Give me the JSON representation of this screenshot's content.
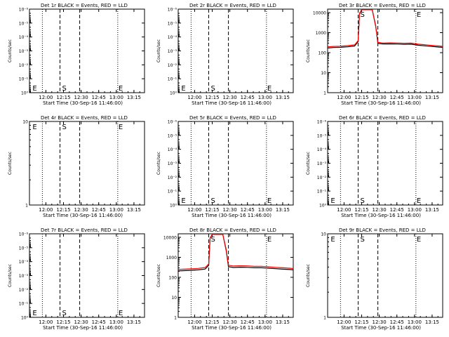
{
  "colors": {
    "events": "#000000",
    "lld": "#ff0000",
    "axes": "#000000"
  },
  "chart_data": [
    {
      "type": "line",
      "title": "Det 1r  BLACK = Events, RED = LLD",
      "ylabel": "Counts/sec",
      "xlabel": "Start Time (30-Sep-16 11:46:00)",
      "yscale": "log",
      "ytick_labels": [
        "10⁰",
        "10⁻¹",
        "10⁻²",
        "10⁻³",
        "10⁻⁴",
        "10⁻⁵",
        "10⁻⁶"
      ],
      "ytick_values": [
        1,
        0.1,
        0.01,
        0.001,
        0.0001,
        1e-05,
        1e-06
      ],
      "ylim": [
        1,
        1e-06
      ],
      "xtick_labels": [
        "12:00",
        "12:15",
        "12:30",
        "12:45",
        "13:00",
        "13:15"
      ],
      "xtick_values": [
        12.0,
        12.25,
        12.5,
        12.75,
        13.0,
        13.25
      ],
      "xlim": [
        11.767,
        13.4
      ],
      "vlines_dotted": [
        11.95,
        13.02
      ],
      "vlines_dashed": [
        12.2,
        12.48
      ],
      "markers": [
        {
          "label": "E",
          "x": 11.8
        },
        {
          "label": "S",
          "x": 12.22
        },
        {
          "label": "E",
          "x": 13.02
        }
      ],
      "series": []
    },
    {
      "type": "line",
      "title": "Det 2r  BLACK = Events, RED = LLD",
      "ylabel": "Counts/sec",
      "xlabel": "Start Time (30-Sep-16 11:46:00)",
      "yscale": "log",
      "ytick_labels": [
        "10⁰",
        "10⁻¹",
        "10⁻²",
        "10⁻³",
        "10⁻⁴",
        "10⁻⁵",
        "10⁻⁶"
      ],
      "ytick_values": [
        1,
        0.1,
        0.01,
        0.001,
        0.0001,
        1e-05,
        1e-06
      ],
      "ylim": [
        1,
        1e-06
      ],
      "xtick_labels": [
        "12:00",
        "12:15",
        "12:30",
        "12:45",
        "13:00",
        "13:15"
      ],
      "xtick_values": [
        12.0,
        12.25,
        12.5,
        12.75,
        13.0,
        13.25
      ],
      "xlim": [
        11.767,
        13.4
      ],
      "vlines_dotted": [
        11.95,
        13.02
      ],
      "vlines_dashed": [
        12.2,
        12.48
      ],
      "markers": [
        {
          "label": "E",
          "x": 11.8
        },
        {
          "label": "S",
          "x": 12.22
        },
        {
          "label": "E",
          "x": 13.02
        }
      ],
      "series": []
    },
    {
      "type": "line",
      "title": "Det 3r  BLACK = Events, RED = LLD",
      "ylabel": "Counts/sec",
      "xlabel": "Start Time (30-Sep-16 11:46:00)",
      "yscale": "log",
      "ytick_labels": [
        "1",
        "10",
        "100",
        "1000",
        "10000"
      ],
      "ytick_values": [
        1,
        10,
        100,
        1000,
        10000
      ],
      "ylim": [
        1,
        15000
      ],
      "xtick_labels": [
        "12:00",
        "12:15",
        "12:30",
        "12:45",
        "13:00",
        "13:15"
      ],
      "xtick_values": [
        12.0,
        12.25,
        12.5,
        12.75,
        13.0,
        13.25
      ],
      "xlim": [
        11.767,
        13.4
      ],
      "vlines_dotted": [
        11.95,
        13.02
      ],
      "vlines_dashed": [
        12.2,
        12.48
      ],
      "markers": [
        {
          "label": "S",
          "x": 12.22
        },
        {
          "label": "E",
          "x": 13.02
        }
      ],
      "series": [
        {
          "name": "Events",
          "color": "#000000",
          "x": [
            11.77,
            11.85,
            11.95,
            12.05,
            12.15,
            12.2,
            12.22,
            12.25,
            12.28,
            12.35,
            12.4,
            12.45,
            12.48,
            12.55,
            12.65,
            12.75,
            12.85,
            12.95,
            13.05,
            13.15,
            13.25,
            13.35,
            13.4
          ],
          "y": [
            170,
            180,
            185,
            195,
            215,
            360,
            9000,
            14000,
            14000,
            14000,
            14000,
            2000,
            290,
            270,
            275,
            270,
            260,
            265,
            235,
            220,
            205,
            190,
            185
          ]
        },
        {
          "name": "LLD",
          "color": "#ff0000",
          "x": [
            11.77,
            11.85,
            11.95,
            12.05,
            12.15,
            12.2,
            12.22,
            12.25,
            12.28,
            12.35,
            12.4,
            12.45,
            12.48,
            12.55,
            12.65,
            12.75,
            12.85,
            12.95,
            13.05,
            13.15,
            13.25,
            13.35,
            13.4
          ],
          "y": [
            195,
            205,
            210,
            225,
            245,
            400,
            9500,
            14000,
            14000,
            14000,
            14000,
            2200,
            330,
            300,
            310,
            305,
            295,
            300,
            265,
            250,
            230,
            215,
            205
          ]
        }
      ]
    },
    {
      "type": "line",
      "title": "Det 4r  BLACK = Events, RED = LLD",
      "ylabel": "Counts/sec",
      "xlabel": "Start Time (30-Sep-16 11:46:00)",
      "yscale": "log",
      "ytick_labels": [
        "1",
        "10"
      ],
      "ytick_values": [
        1,
        10
      ],
      "ylim": [
        1,
        10
      ],
      "xtick_labels": [
        "12:00",
        "12:15",
        "12:30",
        "12:45",
        "13:00",
        "13:15"
      ],
      "xtick_values": [
        12.0,
        12.25,
        12.5,
        12.75,
        13.0,
        13.25
      ],
      "xlim": [
        11.767,
        13.4
      ],
      "vlines_dotted": [
        11.95,
        13.02
      ],
      "vlines_dashed": [
        12.2,
        12.48
      ],
      "markers": [
        {
          "label": "E",
          "x": 11.8
        },
        {
          "label": "S",
          "x": 12.22
        },
        {
          "label": "E",
          "x": 13.02
        }
      ],
      "marker_position": "top",
      "series": []
    },
    {
      "type": "line",
      "title": "Det 5r  BLACK = Events, RED = LLD",
      "ylabel": "Counts/sec",
      "xlabel": "Start Time (30-Sep-16 11:46:00)",
      "yscale": "log",
      "ytick_labels": [
        "10⁰",
        "10⁻¹",
        "10⁻²",
        "10⁻³",
        "10⁻⁴",
        "10⁻⁵",
        "10⁻⁶"
      ],
      "ytick_values": [
        1,
        0.1,
        0.01,
        0.001,
        0.0001,
        1e-05,
        1e-06
      ],
      "ylim": [
        1,
        1e-06
      ],
      "xtick_labels": [
        "12:00",
        "12:15",
        "12:30",
        "12:45",
        "13:00",
        "13:15"
      ],
      "xtick_values": [
        12.0,
        12.25,
        12.5,
        12.75,
        13.0,
        13.25
      ],
      "xlim": [
        11.767,
        13.4
      ],
      "vlines_dotted": [
        11.95,
        13.02
      ],
      "vlines_dashed": [
        12.2,
        12.48
      ],
      "markers": [
        {
          "label": "E",
          "x": 11.8
        },
        {
          "label": "S",
          "x": 12.22
        },
        {
          "label": "E",
          "x": 13.02
        }
      ],
      "series": []
    },
    {
      "type": "line",
      "title": "Det 6r  BLACK = Events, RED = LLD",
      "ylabel": "Counts/sec",
      "xlabel": "Start Time (30-Sep-16 11:46:00)",
      "yscale": "log",
      "ytick_labels": [
        "10⁰",
        "10⁻¹",
        "10⁻²",
        "10⁻³",
        "10⁻⁴",
        "10⁻⁵",
        "10⁻⁶"
      ],
      "ytick_values": [
        1,
        0.1,
        0.01,
        0.001,
        0.0001,
        1e-05,
        1e-06
      ],
      "ylim": [
        1,
        1e-06
      ],
      "xtick_labels": [
        "12:00",
        "12:15",
        "12:30",
        "12:45",
        "13:00",
        "13:15"
      ],
      "xtick_values": [
        12.0,
        12.25,
        12.5,
        12.75,
        13.0,
        13.25
      ],
      "xlim": [
        11.767,
        13.4
      ],
      "vlines_dotted": [
        11.95,
        13.02
      ],
      "vlines_dashed": [
        12.2,
        12.48
      ],
      "markers": [
        {
          "label": "E",
          "x": 11.8
        },
        {
          "label": "S",
          "x": 12.22
        },
        {
          "label": "E",
          "x": 13.02
        }
      ],
      "series": []
    },
    {
      "type": "line",
      "title": "Det 7r  BLACK = Events, RED = LLD",
      "ylabel": "Counts/sec",
      "xlabel": "Start Time (30-Sep-16 11:46:00)",
      "yscale": "log",
      "ytick_labels": [
        "10⁰",
        "10⁻¹",
        "10⁻²",
        "10⁻³",
        "10⁻⁴",
        "10⁻⁵",
        "10⁻⁶"
      ],
      "ytick_values": [
        1,
        0.1,
        0.01,
        0.001,
        0.0001,
        1e-05,
        1e-06
      ],
      "ylim": [
        1,
        1e-06
      ],
      "xtick_labels": [
        "12:00",
        "12:15",
        "12:30",
        "12:45",
        "13:00",
        "13:15"
      ],
      "xtick_values": [
        12.0,
        12.25,
        12.5,
        12.75,
        13.0,
        13.25
      ],
      "xlim": [
        11.767,
        13.4
      ],
      "vlines_dotted": [
        11.95,
        13.02
      ],
      "vlines_dashed": [
        12.2,
        12.48
      ],
      "markers": [
        {
          "label": "E",
          "x": 11.8
        },
        {
          "label": "S",
          "x": 12.22
        },
        {
          "label": "E",
          "x": 13.02
        }
      ],
      "series": []
    },
    {
      "type": "line",
      "title": "Det 8r  BLACK = Events, RED = LLD",
      "ylabel": "Counts/sec",
      "xlabel": "Start Time (30-Sep-16 11:46:00)",
      "yscale": "log",
      "ytick_labels": [
        "1",
        "10",
        "100",
        "1000",
        "10000"
      ],
      "ytick_values": [
        1,
        10,
        100,
        1000,
        10000
      ],
      "ylim": [
        1,
        15000
      ],
      "xtick_labels": [
        "12:00",
        "12:15",
        "12:30",
        "12:45",
        "13:00",
        "13:15"
      ],
      "xtick_values": [
        12.0,
        12.25,
        12.5,
        12.75,
        13.0,
        13.25
      ],
      "xlim": [
        11.767,
        13.4
      ],
      "vlines_dotted": [
        11.95,
        13.02
      ],
      "vlines_dashed": [
        12.2,
        12.48
      ],
      "markers": [
        {
          "label": "S",
          "x": 12.22
        },
        {
          "label": "E",
          "x": 13.02
        }
      ],
      "series": [
        {
          "name": "Events",
          "color": "#000000",
          "x": [
            11.77,
            11.85,
            11.95,
            12.05,
            12.15,
            12.2,
            12.22,
            12.25,
            12.28,
            12.35,
            12.4,
            12.45,
            12.48,
            12.55,
            12.65,
            12.75,
            12.85,
            12.95,
            13.05,
            13.15,
            13.25,
            13.35,
            13.4
          ],
          "y": [
            210,
            215,
            225,
            235,
            260,
            400,
            9000,
            14000,
            14000,
            14000,
            14000,
            2000,
            340,
            310,
            320,
            315,
            300,
            300,
            285,
            270,
            255,
            245,
            235
          ]
        },
        {
          "name": "LLD",
          "color": "#ff0000",
          "x": [
            11.77,
            11.85,
            11.95,
            12.05,
            12.15,
            12.2,
            12.22,
            12.25,
            12.28,
            12.35,
            12.4,
            12.45,
            12.48,
            12.55,
            12.65,
            12.75,
            12.85,
            12.95,
            13.05,
            13.15,
            13.25,
            13.35,
            13.4
          ],
          "y": [
            250,
            255,
            265,
            280,
            310,
            470,
            9500,
            14000,
            14000,
            14000,
            14000,
            2300,
            400,
            370,
            380,
            375,
            355,
            355,
            335,
            315,
            300,
            285,
            275
          ]
        }
      ]
    },
    {
      "type": "line",
      "title": "Det 9r  BLACK = Events, RED = LLD",
      "ylabel": "Counts/sec",
      "xlabel": "Start Time (30-Sep-16 11:46:00)",
      "yscale": "log",
      "ytick_labels": [
        "1",
        "10"
      ],
      "ytick_values": [
        1,
        10
      ],
      "ylim": [
        1,
        10
      ],
      "xtick_labels": [
        "12:00",
        "12:15",
        "12:30",
        "12:45",
        "13:00",
        "13:15"
      ],
      "xtick_values": [
        12.0,
        12.25,
        12.5,
        12.75,
        13.0,
        13.25
      ],
      "xlim": [
        11.767,
        13.4
      ],
      "vlines_dotted": [
        11.95,
        13.02
      ],
      "vlines_dashed": [
        12.2,
        12.48
      ],
      "markers": [
        {
          "label": "E",
          "x": 11.8
        },
        {
          "label": "S",
          "x": 12.22
        },
        {
          "label": "E",
          "x": 13.02
        }
      ],
      "marker_position": "top",
      "series": []
    }
  ]
}
